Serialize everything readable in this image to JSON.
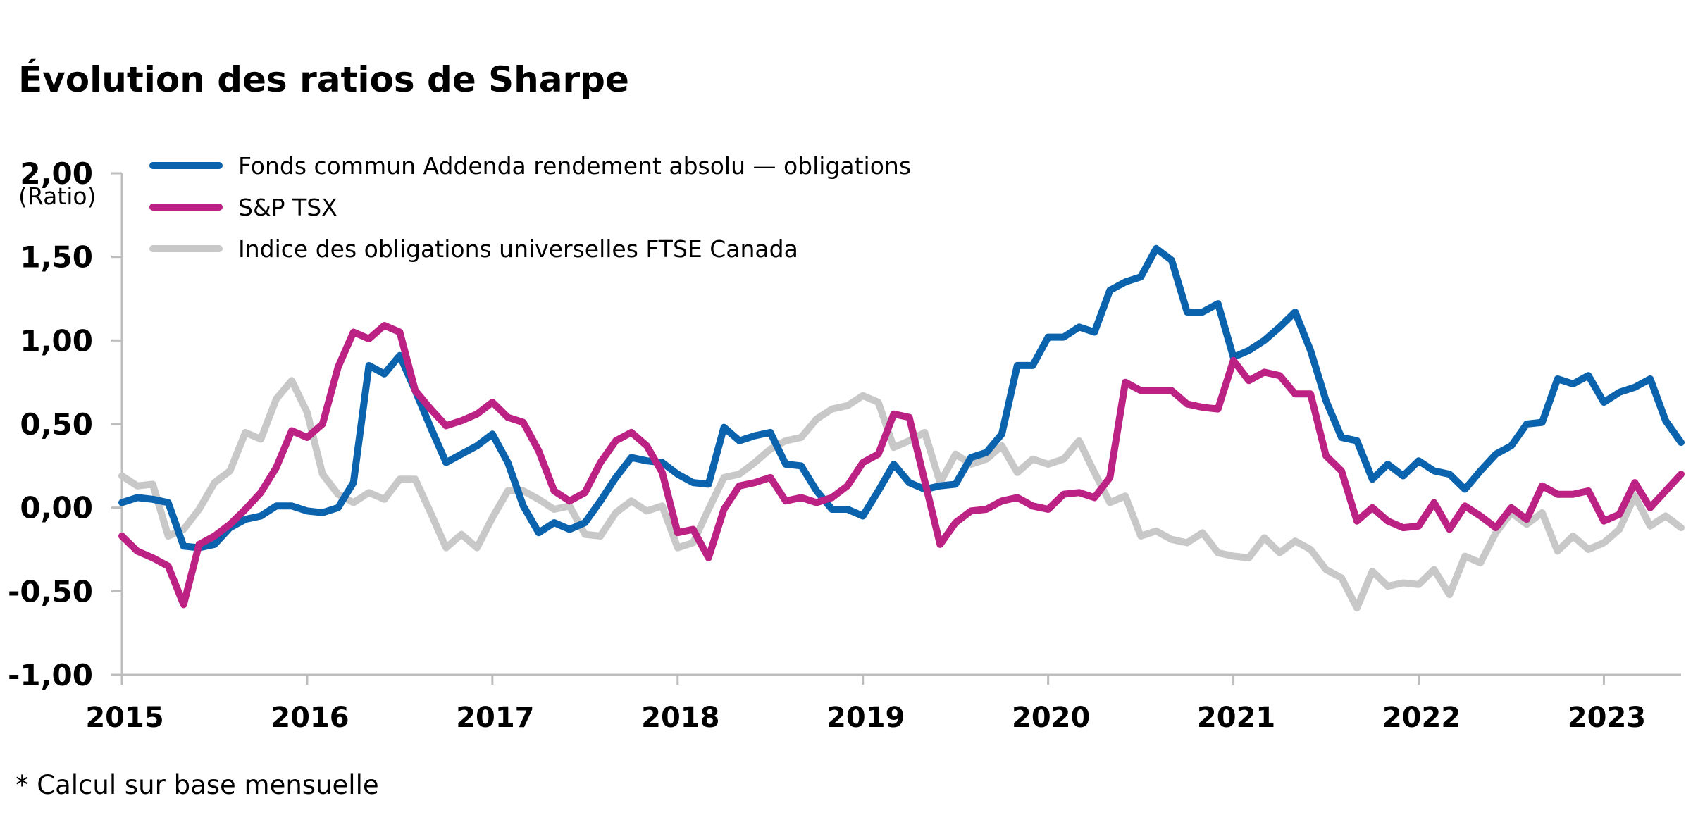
{
  "chart_data": {
    "type": "line",
    "title": "Évolution des ratios de Sharpe",
    "ylabel": "(Ratio)",
    "xlabel": "",
    "footnote": "* Calcul sur base mensuelle",
    "frequency": "monthly",
    "start": "2015-01",
    "end": "2023-06",
    "ylim": [
      -1.0,
      2.0
    ],
    "yticks": [
      2.0,
      1.5,
      1.0,
      0.5,
      0.0,
      -0.5,
      -1.0
    ],
    "ytick_labels": [
      "2,00",
      "1,50",
      "1,00",
      "0,50",
      "0,00",
      "-0,50",
      "-1,00"
    ],
    "xticks": [
      "2015",
      "2016",
      "2017",
      "2018",
      "2019",
      "2020",
      "2021",
      "2022",
      "2023"
    ],
    "grid": false,
    "legend_position": "top-left",
    "series": [
      {
        "name": "Fonds commun Addenda rendement absolu — obligations",
        "color": "#0b63ae",
        "values": [
          0.03,
          0.06,
          0.05,
          0.03,
          -0.23,
          -0.24,
          -0.22,
          -0.12,
          -0.07,
          -0.05,
          0.01,
          0.01,
          -0.02,
          -0.03,
          0.0,
          0.15,
          0.85,
          0.8,
          0.91,
          0.7,
          0.48,
          0.27,
          0.32,
          0.37,
          0.44,
          0.27,
          0.01,
          -0.15,
          -0.09,
          -0.13,
          -0.09,
          0.04,
          0.18,
          0.3,
          0.28,
          0.27,
          0.2,
          0.15,
          0.14,
          0.48,
          0.4,
          0.43,
          0.45,
          0.26,
          0.25,
          0.1,
          -0.01,
          -0.01,
          -0.05,
          0.1,
          0.26,
          0.15,
          0.11,
          0.13,
          0.14,
          0.3,
          0.33,
          0.44,
          0.85,
          0.85,
          1.02,
          1.02,
          1.08,
          1.05,
          1.3,
          1.35,
          1.38,
          1.55,
          1.48,
          1.17,
          1.17,
          1.22,
          0.9,
          0.94,
          1.0,
          1.08,
          1.17,
          0.94,
          0.64,
          0.42,
          0.4,
          0.17,
          0.26,
          0.19,
          0.28,
          0.22,
          0.2,
          0.11,
          0.22,
          0.32,
          0.37,
          0.5,
          0.51,
          0.77,
          0.74,
          0.79,
          0.63,
          0.69,
          0.72,
          0.77,
          0.52,
          0.39
        ]
      },
      {
        "name": "S&P TSX",
        "color": "#bc2184",
        "values": [
          -0.17,
          -0.26,
          -0.3,
          -0.35,
          -0.58,
          -0.22,
          -0.17,
          -0.1,
          -0.01,
          0.09,
          0.24,
          0.46,
          0.42,
          0.5,
          0.84,
          1.05,
          1.01,
          1.09,
          1.05,
          0.7,
          0.59,
          0.49,
          0.52,
          0.56,
          0.63,
          0.54,
          0.51,
          0.34,
          0.1,
          0.04,
          0.09,
          0.27,
          0.4,
          0.45,
          0.37,
          0.21,
          -0.15,
          -0.13,
          -0.3,
          -0.01,
          0.13,
          0.15,
          0.18,
          0.04,
          0.06,
          0.03,
          0.06,
          0.13,
          0.27,
          0.32,
          0.56,
          0.54,
          0.16,
          -0.22,
          -0.09,
          -0.02,
          -0.01,
          0.04,
          0.06,
          0.01,
          -0.01,
          0.08,
          0.09,
          0.06,
          0.18,
          0.75,
          0.7,
          0.7,
          0.7,
          0.62,
          0.6,
          0.59,
          0.88,
          0.76,
          0.81,
          0.79,
          0.68,
          0.68,
          0.31,
          0.22,
          -0.08,
          0.0,
          -0.08,
          -0.12,
          -0.11,
          0.03,
          -0.13,
          0.01,
          -0.05,
          -0.12,
          0.0,
          -0.07,
          0.13,
          0.08,
          0.08,
          0.1,
          -0.08,
          -0.04,
          0.15,
          0.0,
          0.1,
          0.2
        ]
      },
      {
        "name": "Indice des obligations universelles FTSE Canada",
        "color": "#c8c8c8",
        "values": [
          0.19,
          0.13,
          0.14,
          -0.17,
          -0.13,
          -0.01,
          0.15,
          0.22,
          0.45,
          0.41,
          0.65,
          0.76,
          0.57,
          0.2,
          0.08,
          0.03,
          0.09,
          0.05,
          0.17,
          0.17,
          -0.03,
          -0.24,
          -0.16,
          -0.24,
          -0.06,
          0.1,
          0.1,
          0.05,
          -0.01,
          0.01,
          -0.16,
          -0.17,
          -0.03,
          0.04,
          -0.02,
          0.01,
          -0.24,
          -0.21,
          -0.01,
          0.18,
          0.2,
          0.27,
          0.35,
          0.4,
          0.42,
          0.53,
          0.59,
          0.61,
          0.67,
          0.63,
          0.36,
          0.4,
          0.45,
          0.15,
          0.32,
          0.26,
          0.29,
          0.37,
          0.21,
          0.29,
          0.26,
          0.29,
          0.4,
          0.21,
          0.03,
          0.07,
          -0.17,
          -0.14,
          -0.19,
          -0.21,
          -0.15,
          -0.27,
          -0.29,
          -0.3,
          -0.18,
          -0.27,
          -0.2,
          -0.25,
          -0.37,
          -0.42,
          -0.6,
          -0.38,
          -0.47,
          -0.45,
          -0.46,
          -0.37,
          -0.52,
          -0.29,
          -0.33,
          -0.15,
          -0.03,
          -0.1,
          -0.03,
          -0.26,
          -0.17,
          -0.25,
          -0.21,
          -0.13,
          0.07,
          -0.11,
          -0.05,
          -0.12
        ]
      }
    ]
  }
}
